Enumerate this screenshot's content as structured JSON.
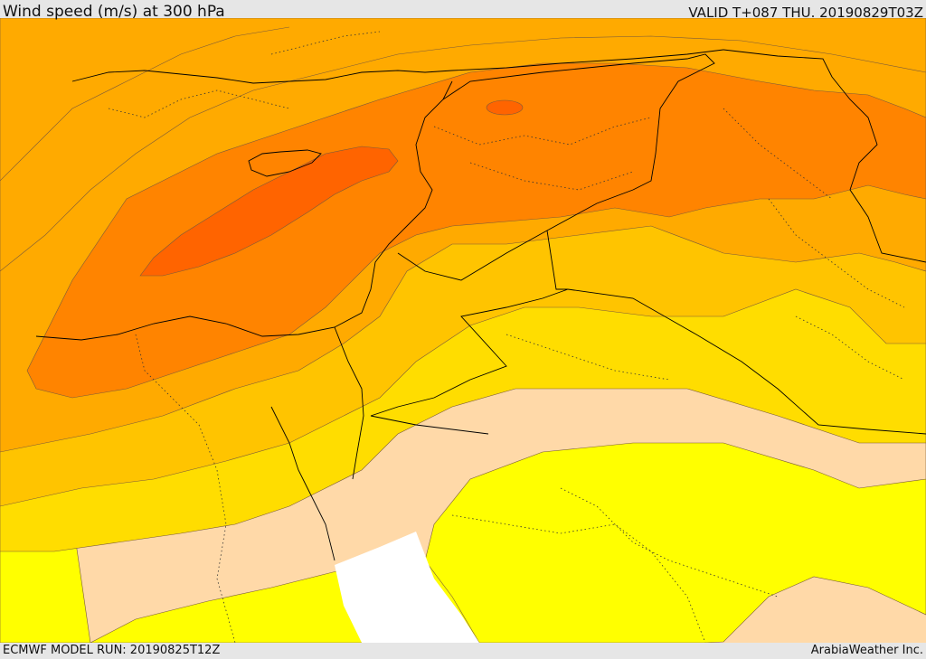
{
  "header": {
    "title": "Wind speed (m/s) at 300 hPa",
    "valid_time": "VALID T+087 THU. 20190829T03Z"
  },
  "footer": {
    "model_run": "ECMWF MODEL RUN: 20190825T12Z",
    "credit": "ArabiaWeather Inc."
  },
  "palette": {
    "band_1": "#ffd9a8",
    "band_2": "#ffff00",
    "band_3": "#ffdd00",
    "band_4": "#ffc400",
    "band_5": "#ffaa00",
    "band_6": "#ff8400",
    "band_7": "#ff6400",
    "sea_no_data": "#ffffff",
    "contour_line": "#7a5a3a",
    "border_line": "#000000"
  }
}
